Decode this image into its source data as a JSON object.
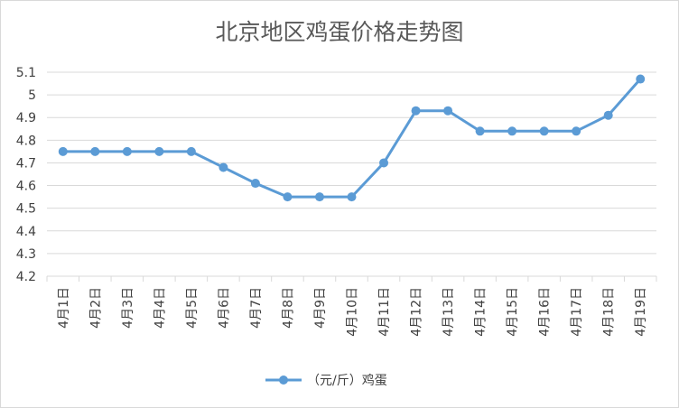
{
  "chart_data": {
    "type": "line",
    "title": "北京地区鸡蛋价格走势图",
    "categories": [
      "4月1日",
      "4月2日",
      "4月3日",
      "4月4日",
      "4月5日",
      "4月6日",
      "4月7日",
      "4月8日",
      "4月9日",
      "4月10日",
      "4月11日",
      "4月12日",
      "4月13日",
      "4月14日",
      "4月15日",
      "4月16日",
      "4月17日",
      "4月18日",
      "4月19日"
    ],
    "series": [
      {
        "name": "（元/斤）鸡蛋",
        "values": [
          4.75,
          4.75,
          4.75,
          4.75,
          4.75,
          4.68,
          4.61,
          4.55,
          4.55,
          4.55,
          4.7,
          4.93,
          4.93,
          4.84,
          4.84,
          4.84,
          4.84,
          4.91,
          5.07
        ]
      }
    ],
    "yticks": [
      "4.2",
      "4.3",
      "4.4",
      "4.5",
      "4.6",
      "4.7",
      "4.8",
      "4.9",
      "5",
      "5.1"
    ],
    "ylim": [
      4.2,
      5.1
    ],
    "grid": true,
    "legend": "bottom-center",
    "line_color": "#5b9bd5"
  }
}
